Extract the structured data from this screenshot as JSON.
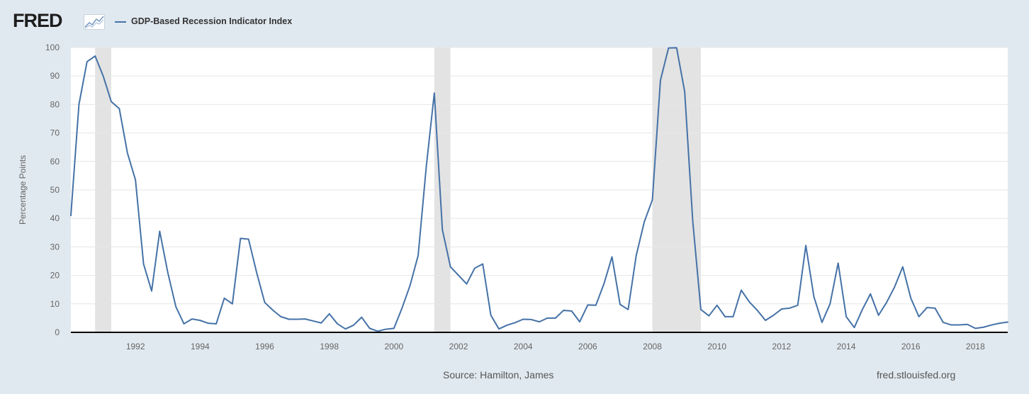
{
  "header": {
    "logo_text": "FRED",
    "legend_label": "GDP-Based Recession Indicator Index"
  },
  "footer": {
    "source": "Source: Hamilton, James",
    "site": "fred.stlouisfed.org"
  },
  "colors": {
    "background": "#e1e9f0",
    "plot_background": "#ffffff",
    "series": "#4572a7",
    "recession_shade": "#e3e3e3",
    "gridline": "#e6e6e6",
    "axis_text": "#666666"
  },
  "icons": [
    "fred-logo-graph-icon",
    "legend-line-icon"
  ],
  "chart_data": {
    "type": "line",
    "title": "",
    "ylabel": "Percentage Points",
    "xlabel": "",
    "xlim": [
      1990.0,
      2019.0
    ],
    "ylim": [
      0,
      100
    ],
    "y_ticks": [
      0,
      10,
      20,
      30,
      40,
      50,
      60,
      70,
      80,
      90,
      100
    ],
    "x_ticks": [
      1992,
      1994,
      1996,
      1998,
      2000,
      2002,
      2004,
      2006,
      2008,
      2010,
      2012,
      2014,
      2016,
      2018
    ],
    "x_tick_labels": [
      "1992",
      "1994",
      "1996",
      "1998",
      "2000",
      "2002",
      "2004",
      "2006",
      "2008",
      "2010",
      "2012",
      "2014",
      "2016",
      "2018"
    ],
    "grid": true,
    "legend_position": "top-left",
    "recessions": [
      {
        "start": 1990.75,
        "end": 1991.25
      },
      {
        "start": 2001.25,
        "end": 2001.75
      },
      {
        "start": 2008.0,
        "end": 2009.5
      }
    ],
    "series": [
      {
        "name": "GDP-Based Recession Indicator Index",
        "x": [
          1990.0,
          1990.25,
          1990.5,
          1990.75,
          1991.0,
          1991.25,
          1991.5,
          1991.75,
          1992.0,
          1992.25,
          1992.5,
          1992.75,
          1993.0,
          1993.25,
          1993.5,
          1993.75,
          1994.0,
          1994.25,
          1994.5,
          1994.75,
          1995.0,
          1995.25,
          1995.5,
          1995.75,
          1996.0,
          1996.25,
          1996.5,
          1996.75,
          1997.0,
          1997.25,
          1997.5,
          1997.75,
          1998.0,
          1998.25,
          1998.5,
          1998.75,
          1999.0,
          1999.25,
          1999.5,
          1999.75,
          2000.0,
          2000.25,
          2000.5,
          2000.75,
          2001.0,
          2001.25,
          2001.5,
          2001.75,
          2002.0,
          2002.25,
          2002.5,
          2002.75,
          2003.0,
          2003.25,
          2003.5,
          2003.75,
          2004.0,
          2004.25,
          2004.5,
          2004.75,
          2005.0,
          2005.25,
          2005.5,
          2005.75,
          2006.0,
          2006.25,
          2006.5,
          2006.75,
          2007.0,
          2007.25,
          2007.5,
          2007.75,
          2008.0,
          2008.25,
          2008.5,
          2008.75,
          2009.0,
          2009.25,
          2009.5,
          2009.75,
          2010.0,
          2010.25,
          2010.5,
          2010.75,
          2011.0,
          2011.25,
          2011.5,
          2011.75,
          2012.0,
          2012.25,
          2012.5,
          2012.75,
          2013.0,
          2013.25,
          2013.5,
          2013.75,
          2014.0,
          2014.25,
          2014.5,
          2014.75,
          2015.0,
          2015.25,
          2015.5,
          2015.75,
          2016.0,
          2016.25,
          2016.5,
          2016.75,
          2017.0,
          2017.25,
          2017.5,
          2017.75,
          2018.0,
          2018.25,
          2018.5,
          2018.75,
          2019.0
        ],
        "y": [
          41,
          80,
          95,
          97,
          90,
          81,
          78.5,
          63,
          53.5,
          24,
          14.5,
          35.5,
          21,
          9,
          3,
          4.7,
          4.2,
          3.2,
          3,
          12,
          10,
          33,
          32.7,
          21,
          10.5,
          7.8,
          5.5,
          4.6,
          4.6,
          4.7,
          4,
          3.3,
          6.5,
          3,
          1.2,
          2.5,
          5.3,
          1.4,
          0.4,
          1.1,
          1.4,
          8.5,
          16.5,
          27,
          58,
          84,
          36,
          23,
          20,
          17,
          22.5,
          24,
          6,
          1.2,
          2.5,
          3.4,
          4.6,
          4.5,
          3.7,
          5,
          5,
          7.7,
          7.5,
          3.7,
          9.6,
          9.5,
          17,
          26.5,
          9.8,
          8,
          27,
          38.8,
          46.5,
          88.5,
          99.8,
          99.9,
          84.5,
          39,
          8,
          5.8,
          9.5,
          5.5,
          5.5,
          14.8,
          10.7,
          7.7,
          4.2,
          6,
          8.2,
          8.5,
          9.5,
          30.5,
          12.5,
          3.5,
          10,
          24.3,
          5.5,
          1.7,
          8,
          13.5,
          6,
          10.5,
          16,
          23,
          12,
          5.5,
          8.7,
          8.5,
          3.5,
          2.6,
          2.6,
          2.8,
          1.4,
          1.8,
          2.6,
          3.2,
          3.6
        ]
      }
    ]
  }
}
